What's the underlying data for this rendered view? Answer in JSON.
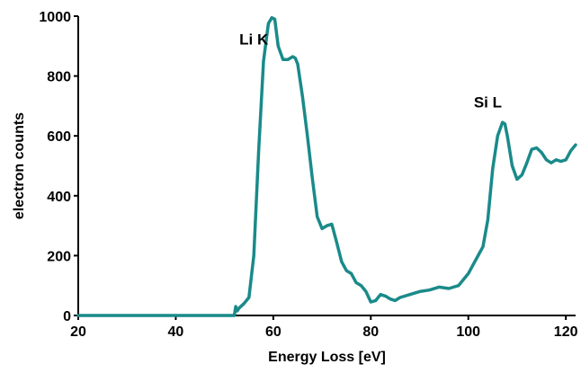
{
  "chart_data": {
    "type": "line",
    "title": "",
    "xlabel": "Energy Loss [eV]",
    "ylabel": "electron counts",
    "xlim": [
      20,
      122
    ],
    "ylim": [
      0,
      1000
    ],
    "x_ticks": [
      20,
      40,
      60,
      80,
      100,
      120
    ],
    "y_ticks": [
      0,
      200,
      400,
      600,
      800,
      1000
    ],
    "grid": false,
    "legend": "none",
    "line_color": "#1a8a8a",
    "annotations": [
      {
        "text": "Li K",
        "x": 56,
        "y": 905
      },
      {
        "text": "Si L",
        "x": 104,
        "y": 695
      }
    ],
    "series": [
      {
        "x": [
          20,
          52,
          52.3,
          52.6,
          53,
          54,
          55,
          56,
          57,
          58,
          59,
          59.7,
          60.3,
          61,
          62,
          63,
          64,
          64.5,
          65,
          66,
          67,
          68,
          69,
          70,
          71,
          72,
          73,
          74,
          75,
          76,
          77,
          78,
          79,
          80,
          81,
          82,
          83,
          84,
          85,
          86,
          88,
          90,
          92,
          94,
          96,
          98,
          100,
          101,
          102,
          103,
          104,
          105,
          106,
          107,
          107.5,
          108,
          109,
          110,
          111,
          112,
          113,
          114,
          115,
          116,
          117,
          118,
          119,
          120,
          121,
          122
        ],
        "y": [
          0,
          0,
          30,
          15,
          25,
          40,
          60,
          200,
          550,
          850,
          975,
          995,
          990,
          900,
          855,
          855,
          865,
          860,
          840,
          730,
          600,
          460,
          330,
          290,
          300,
          305,
          245,
          180,
          150,
          140,
          110,
          100,
          80,
          45,
          50,
          70,
          65,
          55,
          50,
          60,
          70,
          80,
          85,
          95,
          90,
          100,
          140,
          170,
          200,
          230,
          320,
          490,
          600,
          645,
          640,
          600,
          500,
          455,
          470,
          510,
          555,
          560,
          545,
          520,
          510,
          520,
          515,
          520,
          550,
          570
        ]
      }
    ]
  }
}
